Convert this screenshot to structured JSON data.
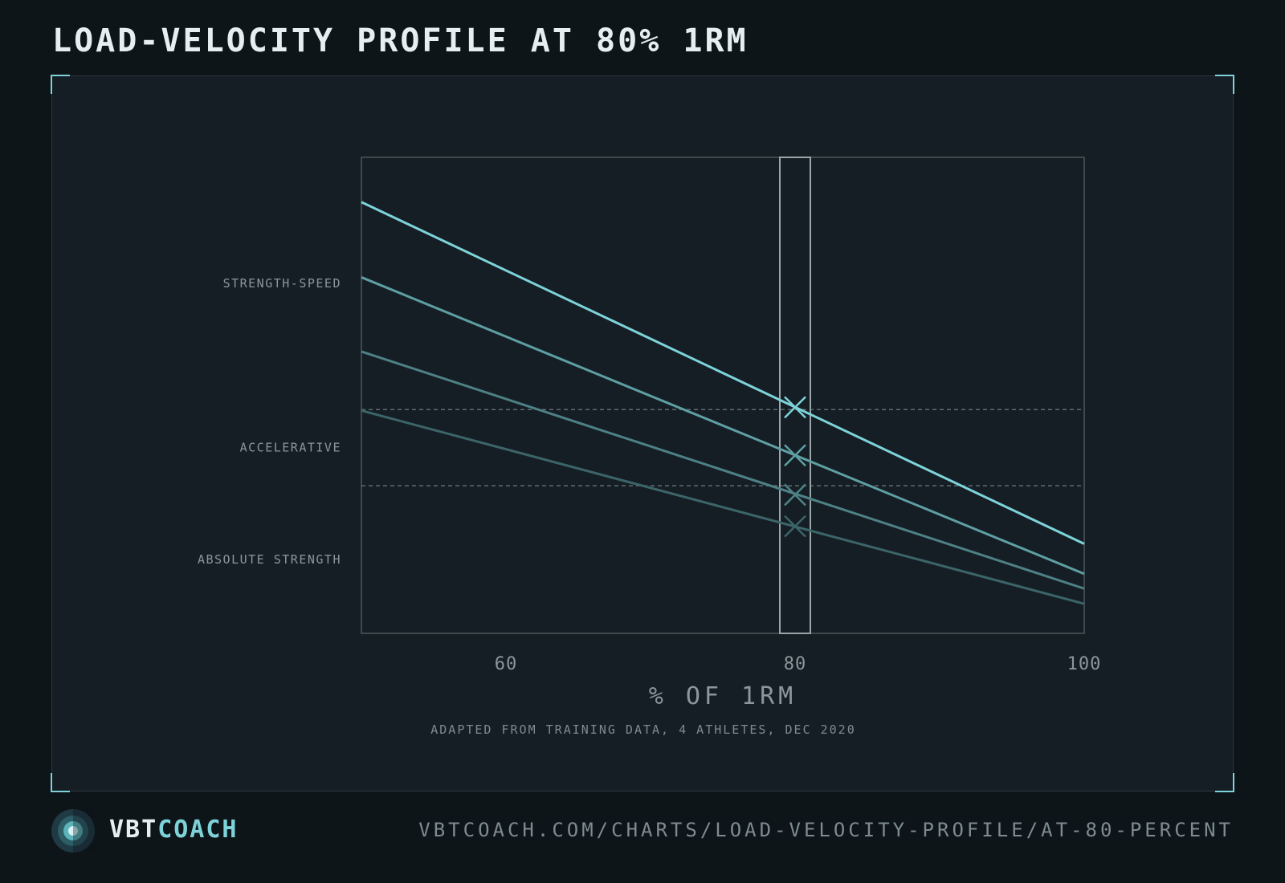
{
  "page": {
    "title": "LOAD-VELOCITY PROFILE AT 80% 1RM"
  },
  "colors": {
    "accent": "#7dd3d9",
    "series": [
      "#7dd3d9",
      "#5e9fa4",
      "#4d8186",
      "#3c6569"
    ],
    "frame": "#3e494d",
    "zone_line": "#5f6b70"
  },
  "chart_data": {
    "type": "line",
    "title": "LOAD-VELOCITY PROFILE AT 80% 1RM",
    "xlabel": "% OF 1RM",
    "ylabel": "",
    "xlim": [
      50,
      100
    ],
    "ylim": [
      0,
      1
    ],
    "x_ticks": [
      60,
      80,
      100
    ],
    "grid": false,
    "highlight_x": 80,
    "zones": [
      {
        "label": "STRENGTH-SPEED",
        "y_min": 0.47,
        "y_max": 1.0
      },
      {
        "label": "ACCELERATIVE",
        "y_min": 0.31,
        "y_max": 0.47
      },
      {
        "label": "ABSOLUTE STRENGTH",
        "y_min": 0.0,
        "y_max": 0.31
      }
    ],
    "zone_boundaries": [
      0.47,
      0.31
    ],
    "series": [
      {
        "x": [
          50,
          100
        ],
        "y": [
          0.906,
          0.188
        ],
        "marker_y": 0.475
      },
      {
        "x": [
          50,
          100
        ],
        "y": [
          0.748,
          0.125
        ],
        "marker_y": 0.374
      },
      {
        "x": [
          50,
          100
        ],
        "y": [
          0.592,
          0.094
        ],
        "marker_y": 0.291
      },
      {
        "x": [
          50,
          100
        ],
        "y": [
          0.468,
          0.062
        ],
        "marker_y": 0.225
      }
    ],
    "caption": "ADAPTED FROM TRAINING DATA, 4 ATHLETES, DEC 2020"
  },
  "footer": {
    "brand_part1": "VBT",
    "brand_part2": "COACH",
    "url": "VBTCOACH.COM/CHARTS/LOAD-VELOCITY-PROFILE/AT-80-PERCENT",
    "logo_icon": "concentric-target-icon"
  }
}
